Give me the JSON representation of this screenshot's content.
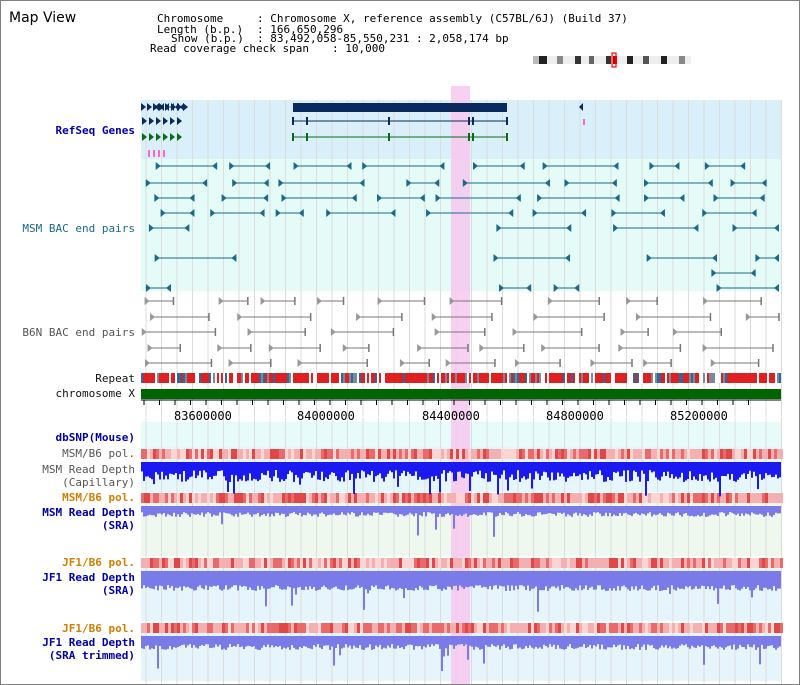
{
  "title": "Map View",
  "info": {
    "chromosome_label": "Chromosome",
    "chromosome_value": ": Chromosome X, reference assembly (C57BL/6J) (Build 37)",
    "length_label": "Length (b.p.)",
    "length_value": ": 166,650,296",
    "show_label": "Show (b.p.)",
    "show_value": ": 83,492,058-85,550,231 : 2,058,174 bp",
    "span_label": "Read coverage check span",
    "span_value": ": 10,000"
  },
  "tracks": {
    "refseq": "RefSeq Genes",
    "msm_bac": "MSM BAC end pairs",
    "b6n_bac": "B6N BAC end pairs",
    "repeat": "Repeat",
    "chromosome": "chromosome X",
    "dbsnp": "dbSNP(Mouse)",
    "msm_b6_pol_1": "MSM/B6 pol.",
    "msm_depth_cap_1": "MSM Read Depth",
    "msm_depth_cap_2": "(Capillary)",
    "msm_b6_pol_2": "MSM/B6 pol.",
    "msm_depth_sra_1": "MSM Read Depth",
    "msm_depth_sra_2": "(SRA)",
    "jf1_b6_pol_1": "JF1/B6 pol.",
    "jf1_depth_sra_1": "JF1 Read Depth",
    "jf1_depth_sra_2": "(SRA)",
    "jf1_b6_pol_2": "JF1/B6 pol.",
    "jf1_depth_trim_1": "JF1 Read Depth",
    "jf1_depth_trim_2": "(SRA trimmed)"
  },
  "axis": {
    "ticks": [
      "83600000",
      "84000000",
      "84400000",
      "84800000",
      "85200000"
    ]
  },
  "colors": {
    "highlight": "#f7c8ee",
    "refseq_bg": "#d9f0fb",
    "msm_bac_bg": "#e4fbf8",
    "navy": "#0a2a5e",
    "teal": "#1a6a8a",
    "green": "#006400",
    "repeat_red": "#e02020",
    "depth_blue": "#1a1af0",
    "depth_light": "#7a7ae8"
  }
}
